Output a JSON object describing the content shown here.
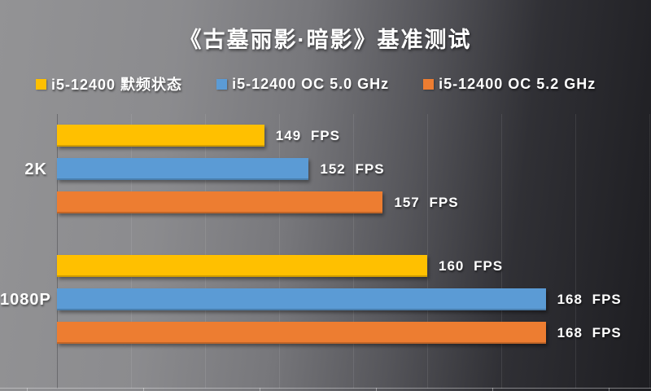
{
  "title": "《古墓丽影·暗影》基准测试",
  "chart_data": {
    "type": "bar",
    "orientation": "horizontal",
    "title": "《古墓丽影·暗影》基准测试",
    "unit": "FPS",
    "categories": [
      "2K",
      "1080P"
    ],
    "series": [
      {
        "name": "i5-12400 默频状态",
        "color": "#FFC000",
        "values": [
          149,
          160
        ],
        "value_labels": [
          "149 FPS",
          "160 FPS"
        ]
      },
      {
        "name": "i5-12400 OC 5.0 GHz",
        "color": "#5B9BD5",
        "values": [
          152,
          168
        ],
        "value_labels": [
          "152 FPS",
          "168 FPS"
        ]
      },
      {
        "name": "i5-12400 OC 5.2 GHz",
        "color": "#ED7D31",
        "values": [
          157,
          168
        ],
        "value_labels": [
          "157 FPS",
          "168 FPS"
        ]
      }
    ],
    "xlim": [
      135,
      175
    ],
    "gridline_step": 5,
    "grid": true,
    "legend_position": "top",
    "text_color": "#ffffff",
    "background_left": "#929294",
    "background_right": "#1d1d21"
  }
}
